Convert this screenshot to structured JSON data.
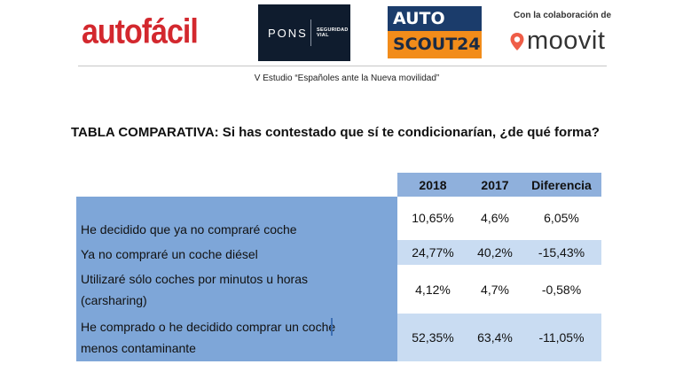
{
  "header": {
    "logos": {
      "autofacil": "autofácil",
      "pons_word": "PONS",
      "pons_sub": "SEGURIDAD VIAL",
      "autoscout_top": "AUTO",
      "autoscout_bottom": "SCOUT24",
      "collab_text": "Con la colaboración de",
      "moovit": "moovit"
    },
    "subtitle": "V Estudio  “Españoles ante la Nueva movilidad”",
    "colors": {
      "autofacil": "#d3282e",
      "pons_bg": "#0f1c2e",
      "scout_top": "#1b3c6b",
      "scout_bottom": "#f28c1a",
      "moovit_pin": "#ef5d47"
    }
  },
  "table_title": "TABLA COMPARATIVA: Si has contestado que sí te condicionarían, ¿de qué forma?",
  "table": {
    "columns": [
      "2018",
      "2017",
      "Diferencia"
    ],
    "rows": [
      {
        "label": "He decidido que ya no compraré coche",
        "v2018": "10,65%",
        "v2017": "4,6%",
        "diff": "6,05%"
      },
      {
        "label": "Ya no compraré un coche diésel",
        "v2018": "24,77%",
        "v2017": "40,2%",
        "diff": "-15,43%"
      },
      {
        "label": "Utilizaré sólo coches por minutos u horas (carsharing)",
        "v2018": "4,12%",
        "v2017": "4,7%",
        "diff": "-0,58%"
      },
      {
        "label": "He comprado o he decidido comprar un coche menos contaminante",
        "v2018": "52,35%",
        "v2017": "63,4%",
        "diff": "-11,05%"
      }
    ],
    "colors": {
      "header_bg": "#8fb0dc",
      "label_bg": "#7ea6d8",
      "band_bg": "#c9dcf2"
    }
  }
}
